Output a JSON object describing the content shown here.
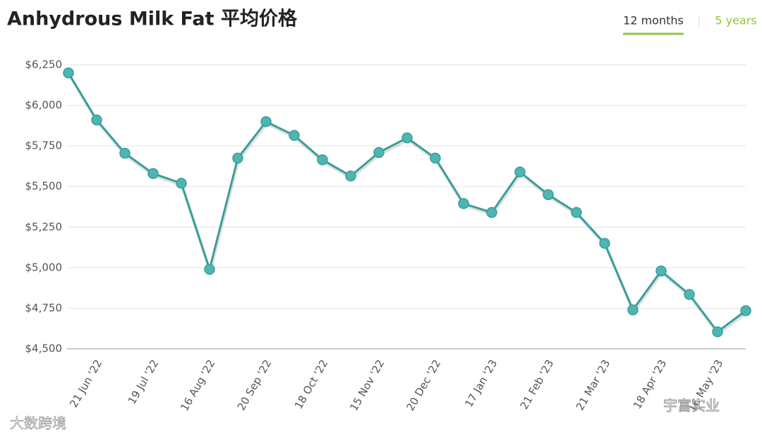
{
  "chart_data": {
    "type": "line",
    "title": "Anhydrous Milk Fat 平均价格",
    "range_options": [
      "12 months",
      "5 years"
    ],
    "selected_range": "12 months",
    "categories": [
      null,
      "21 Jun '22",
      null,
      "19 Jul '22",
      null,
      "16 Aug '22",
      null,
      "20 Sep '22",
      null,
      "18 Oct '22",
      null,
      "15 Nov '22",
      null,
      "20 Dec '22",
      null,
      "17 Jan '23",
      null,
      "21 Feb '23",
      null,
      "21 Mar '23",
      null,
      "18 Apr '23",
      null,
      "16 May '23",
      null
    ],
    "series": [
      {
        "color": "#3a9e9b",
        "values": [
          6200,
          5910,
          5705,
          5580,
          5520,
          4990,
          5675,
          5900,
          5815,
          5665,
          5565,
          5710,
          5800,
          5675,
          5395,
          5340,
          5590,
          5450,
          5340,
          5150,
          4740,
          4980,
          4835,
          4605,
          4735
        ]
      }
    ],
    "ylim": [
      4500,
      6250
    ],
    "yticks": [
      {
        "value": 4500,
        "label": "$4,500"
      },
      {
        "value": 4750,
        "label": "$4,750"
      },
      {
        "value": 5000,
        "label": "$5,000"
      },
      {
        "value": 5250,
        "label": "$5,250"
      },
      {
        "value": 5500,
        "label": "$5,500"
      },
      {
        "value": 5750,
        "label": "$5,750"
      },
      {
        "value": 6000,
        "label": "$6,000"
      },
      {
        "value": 6250,
        "label": "$6,250"
      }
    ],
    "grid": true
  },
  "watermarks": [
    "大数跨境",
    "宇富实业"
  ]
}
